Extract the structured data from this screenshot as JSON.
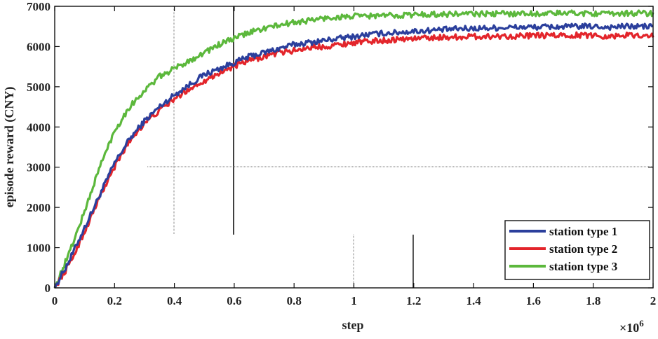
{
  "chart_data": {
    "type": "line",
    "xlabel": "step",
    "ylabel": "episode reward (CNY)",
    "x_multiplier_label": "×10",
    "x_multiplier_exponent": "6",
    "xlim": [
      0,
      2
    ],
    "ylim": [
      0,
      7000
    ],
    "x_ticks": [
      0,
      0.2,
      0.4,
      0.6,
      0.8,
      1,
      1.2,
      1.4,
      1.6,
      1.8,
      2
    ],
    "x_tick_labels": [
      "0",
      "0.2",
      "0.4",
      "0.6",
      "0.8",
      "1",
      "1.2",
      "1.4",
      "1.6",
      "1.8",
      "2"
    ],
    "y_ticks": [
      0,
      1000,
      2000,
      3000,
      4000,
      5000,
      6000,
      7000
    ],
    "y_tick_labels": [
      "0",
      "1000",
      "2000",
      "3000",
      "4000",
      "5000",
      "6000",
      "7000"
    ],
    "legend_position": "bottom-right",
    "x": [
      0,
      0.05,
      0.1,
      0.15,
      0.2,
      0.25,
      0.3,
      0.35,
      0.4,
      0.45,
      0.5,
      0.55,
      0.6,
      0.65,
      0.7,
      0.75,
      0.8,
      0.85,
      0.9,
      0.95,
      1.0,
      1.05,
      1.1,
      1.15,
      1.2,
      1.25,
      1.3,
      1.35,
      1.4,
      1.45,
      1.5,
      1.55,
      1.6,
      1.65,
      1.7,
      1.75,
      1.8,
      1.85,
      1.9,
      1.95,
      2.0
    ],
    "series": [
      {
        "name": "station type 1",
        "color": "#2b3f9c",
        "values": [
          0,
          700,
          1500,
          2300,
          3100,
          3700,
          4150,
          4500,
          4800,
          5050,
          5300,
          5450,
          5600,
          5750,
          5850,
          5950,
          6050,
          6100,
          6150,
          6200,
          6250,
          6300,
          6330,
          6350,
          6380,
          6400,
          6420,
          6440,
          6450,
          6460,
          6470,
          6480,
          6480,
          6490,
          6490,
          6500,
          6500,
          6480,
          6500,
          6500,
          6500
        ]
      },
      {
        "name": "station type 2",
        "color": "#e3252b",
        "values": [
          0,
          600,
          1400,
          2250,
          3000,
          3650,
          4100,
          4400,
          4700,
          4950,
          5150,
          5350,
          5500,
          5650,
          5750,
          5850,
          5900,
          5980,
          6000,
          6050,
          6100,
          6130,
          6150,
          6180,
          6200,
          6220,
          6230,
          6240,
          6250,
          6250,
          6260,
          6260,
          6270,
          6270,
          6280,
          6280,
          6280,
          6250,
          6280,
          6280,
          6280
        ]
      },
      {
        "name": "station type 3",
        "color": "#5cb83c",
        "values": [
          0,
          900,
          1900,
          3000,
          3900,
          4500,
          4900,
          5250,
          5450,
          5650,
          5850,
          6050,
          6200,
          6350,
          6450,
          6530,
          6600,
          6650,
          6700,
          6730,
          6750,
          6760,
          6770,
          6780,
          6790,
          6800,
          6800,
          6810,
          6810,
          6810,
          6820,
          6820,
          6820,
          6820,
          6830,
          6830,
          6830,
          6800,
          6830,
          6830,
          6820
        ]
      }
    ]
  }
}
